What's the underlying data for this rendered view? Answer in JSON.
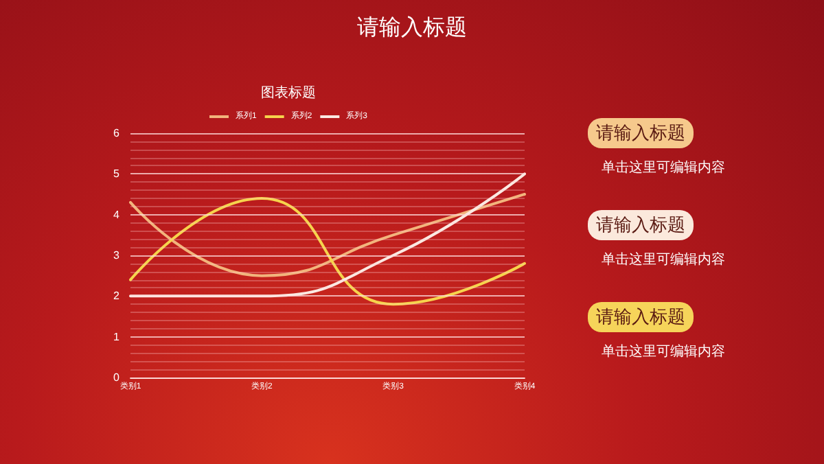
{
  "chart_data": {
    "type": "line",
    "title": "请输入标题",
    "subtitle": "图表标题",
    "categories": [
      "类别1",
      "类别2",
      "类别3",
      "类别4"
    ],
    "series": [
      {
        "name": "系列1",
        "color": "#f2b47c",
        "values": [
          4.3,
          2.5,
          3.5,
          4.5
        ]
      },
      {
        "name": "系列2",
        "color": "#f6d34c",
        "values": [
          2.4,
          4.4,
          1.8,
          2.8
        ]
      },
      {
        "name": "系列3",
        "color": "#fbe9e2",
        "values": [
          2,
          2,
          3,
          5
        ]
      }
    ],
    "ylim": [
      0,
      6
    ],
    "yticks": [
      0,
      {
        "value": 0.2,
        "label": null
      },
      {
        "value": 0.4,
        "label": null
      },
      {
        "value": 0.6,
        "label": null
      },
      {
        "value": 0.8,
        "label": null
      },
      1,
      {
        "value": 1.2,
        "label": null
      },
      {
        "value": 1.4,
        "label": null
      },
      {
        "value": 1.6,
        "label": null
      },
      {
        "value": 1.8,
        "label": null
      },
      2,
      {
        "value": 2.2,
        "label": null
      },
      {
        "value": 2.4,
        "label": null
      },
      {
        "value": 2.6,
        "label": null
      },
      {
        "value": 2.8,
        "label": null
      },
      3,
      {
        "value": 3.2,
        "label": null
      },
      {
        "value": 3.4,
        "label": null
      },
      {
        "value": 3.6,
        "label": null
      },
      {
        "value": 3.8,
        "label": null
      },
      4,
      {
        "value": 4.2,
        "label": null
      },
      {
        "value": 4.4,
        "label": null
      },
      {
        "value": 4.6,
        "label": null
      },
      {
        "value": 4.8,
        "label": null
      },
      5,
      {
        "value": 5.2,
        "label": null
      },
      {
        "value": 5.4,
        "label": null
      },
      {
        "value": 5.6,
        "label": null
      },
      {
        "value": 5.8,
        "label": null
      },
      6
    ],
    "grid": true,
    "legend": "top",
    "marker": "none",
    "line_style": "solid",
    "annotations": [
      "请输入标题",
      "单击这里可编辑内容",
      "请输入标题",
      "单击这里可编辑内容",
      "请输入标题",
      "单击这里可编辑内容"
    ]
  }
}
